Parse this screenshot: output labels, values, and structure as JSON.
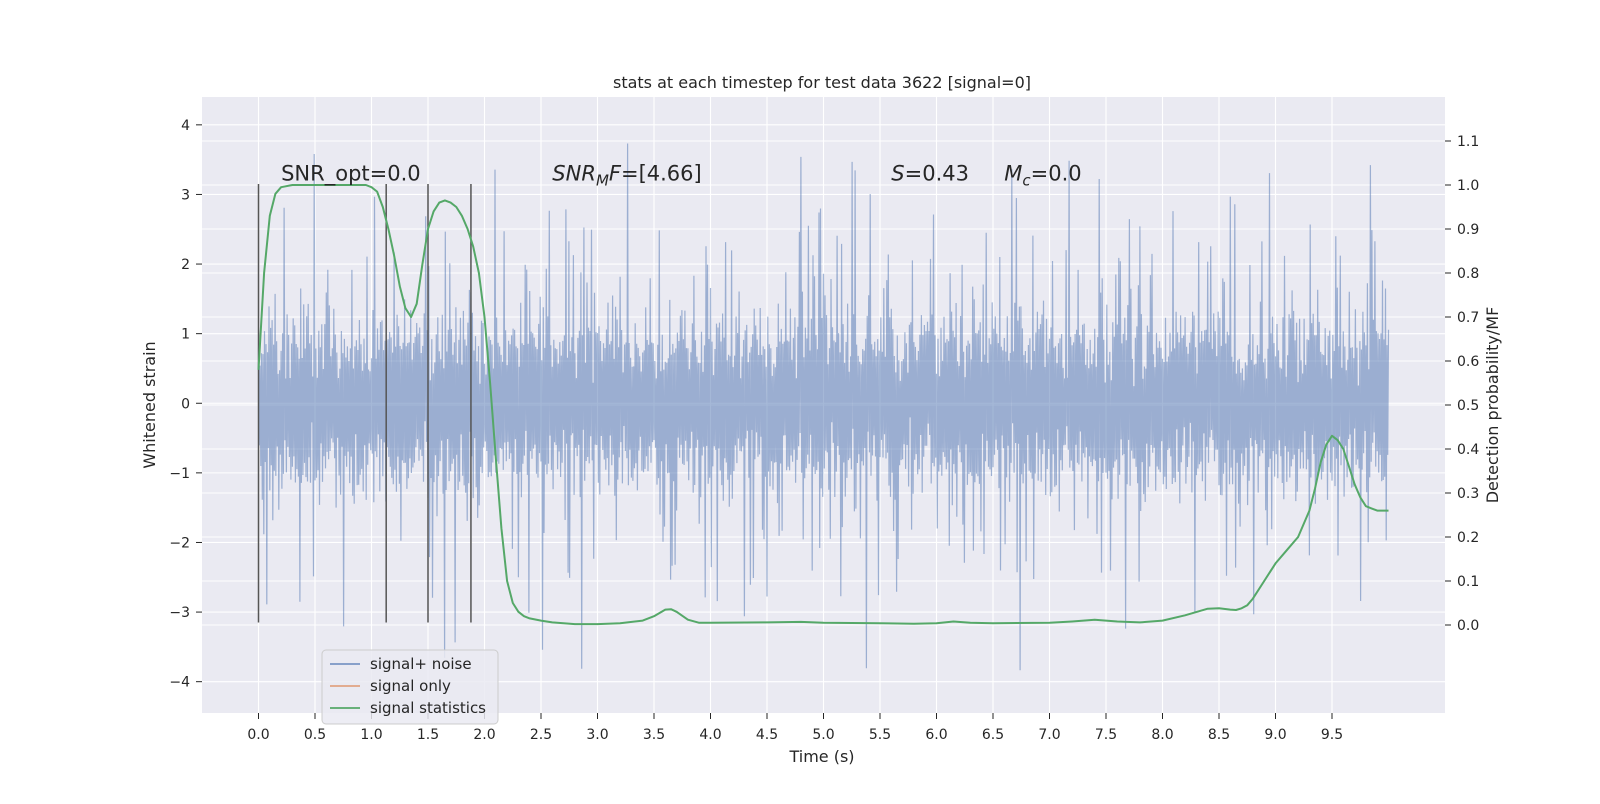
{
  "chart_data": {
    "type": "line",
    "title": "stats at each timestep for test data 3622 [signal=0]",
    "xlabel": "Time (s)",
    "ylabel_left": "Whitened strain",
    "ylabel_right": "Detection probability/MF",
    "xlim": [
      -0.5,
      10.5
    ],
    "ylim_left": [
      -4.45,
      4.4
    ],
    "ylim_right": [
      -0.2,
      1.2
    ],
    "x_ticks": [
      "0.0",
      "0.5",
      "1.0",
      "1.5",
      "2.0",
      "2.5",
      "3.0",
      "3.5",
      "4.0",
      "4.5",
      "5.0",
      "5.5",
      "6.0",
      "6.5",
      "7.0",
      "7.5",
      "8.0",
      "8.5",
      "9.0",
      "9.5"
    ],
    "y_ticks_left": [
      "4",
      "3",
      "2",
      "1",
      "0",
      "−1",
      "−2",
      "−3",
      "−4"
    ],
    "y_ticks_right": [
      "1.1",
      "1.0",
      "0.9",
      "0.8",
      "0.7",
      "0.6",
      "0.5",
      "0.4",
      "0.3",
      "0.2",
      "0.1",
      "0.0"
    ],
    "grid": true,
    "legend_position": "bottom-left",
    "colors": {
      "background": "#eaeaf2",
      "grid": "#ffffff",
      "noise": "#4c72b0",
      "signal": "#dd8452",
      "stats": "#55a868",
      "vline": "#555555"
    },
    "series": [
      {
        "name": "signal+ noise",
        "kind": "noise-strain",
        "x_range": [
          0.0,
          10.0
        ],
        "typical_range": [
          -1.3,
          1.3
        ],
        "extreme_range": [
          -4.05,
          4.05
        ]
      },
      {
        "name": "signal only",
        "kind": "line",
        "x": [],
        "y": []
      },
      {
        "name": "signal statistics",
        "kind": "line",
        "axis": "right",
        "x": [
          0.0,
          0.05,
          0.1,
          0.15,
          0.2,
          0.3,
          0.4,
          0.5,
          0.6,
          0.7,
          0.8,
          0.9,
          0.95,
          1.0,
          1.05,
          1.1,
          1.15,
          1.2,
          1.25,
          1.3,
          1.35,
          1.4,
          1.45,
          1.5,
          1.55,
          1.6,
          1.65,
          1.7,
          1.75,
          1.8,
          1.85,
          1.9,
          1.95,
          2.0,
          2.05,
          2.1,
          2.15,
          2.2,
          2.25,
          2.3,
          2.35,
          2.4,
          2.5,
          2.6,
          2.7,
          2.8,
          2.9,
          3.0,
          3.2,
          3.4,
          3.5,
          3.6,
          3.65,
          3.7,
          3.8,
          3.9,
          4.0,
          4.5,
          4.8,
          5.0,
          5.5,
          5.8,
          6.0,
          6.15,
          6.3,
          6.5,
          7.0,
          7.2,
          7.4,
          7.6,
          7.8,
          8.0,
          8.2,
          8.4,
          8.5,
          8.6,
          8.65,
          8.7,
          8.75,
          8.8,
          8.9,
          9.0,
          9.1,
          9.2,
          9.3,
          9.35,
          9.4,
          9.45,
          9.5,
          9.55,
          9.6,
          9.65,
          9.7,
          9.75,
          9.8,
          9.85,
          9.9,
          9.95,
          10.0
        ],
        "y": [
          0.58,
          0.8,
          0.93,
          0.98,
          0.995,
          1.0,
          1.0,
          1.0,
          1.0,
          1.0,
          1.0,
          1.0,
          1.0,
          0.995,
          0.985,
          0.95,
          0.9,
          0.84,
          0.77,
          0.72,
          0.7,
          0.73,
          0.82,
          0.9,
          0.94,
          0.96,
          0.965,
          0.96,
          0.95,
          0.93,
          0.9,
          0.86,
          0.8,
          0.7,
          0.55,
          0.38,
          0.22,
          0.1,
          0.05,
          0.03,
          0.02,
          0.015,
          0.01,
          0.006,
          0.004,
          0.002,
          0.002,
          0.002,
          0.004,
          0.01,
          0.02,
          0.035,
          0.036,
          0.03,
          0.012,
          0.005,
          0.005,
          0.006,
          0.007,
          0.005,
          0.004,
          0.003,
          0.004,
          0.008,
          0.005,
          0.004,
          0.005,
          0.008,
          0.012,
          0.008,
          0.006,
          0.01,
          0.022,
          0.037,
          0.038,
          0.035,
          0.034,
          0.038,
          0.045,
          0.06,
          0.1,
          0.14,
          0.17,
          0.2,
          0.26,
          0.31,
          0.37,
          0.41,
          0.43,
          0.42,
          0.4,
          0.36,
          0.32,
          0.29,
          0.27,
          0.265,
          0.26,
          0.26,
          0.26
        ]
      }
    ],
    "vlines": {
      "x": [
        0.0,
        1.13,
        1.5,
        1.88
      ],
      "ymin": -3.15,
      "ymax": 3.15
    },
    "annotations": [
      {
        "id": "snr_opt",
        "text": "SNR_opt=0.0",
        "x": 0.2,
        "y": 3.3
      },
      {
        "id": "snr_mf",
        "parts": [
          "SNR",
          "M",
          "F",
          "=[4.66]"
        ],
        "x": 2.6,
        "y": 3.3
      },
      {
        "id": "s_stat",
        "parts": [
          "S",
          "=0.43"
        ],
        "x": 5.6,
        "y": 3.3
      },
      {
        "id": "m_c",
        "parts": [
          "M",
          "c",
          "=0.0"
        ],
        "x": 6.6,
        "y": 3.3
      }
    ]
  }
}
